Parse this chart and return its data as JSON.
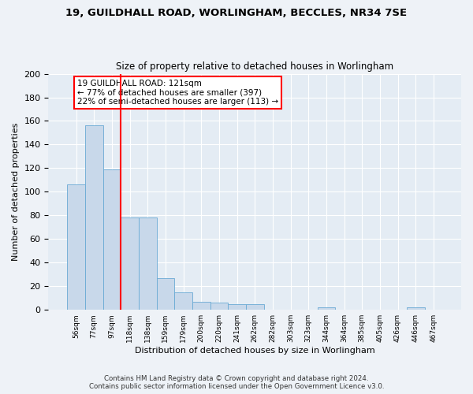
{
  "title_line1": "19, GUILDHALL ROAD, WORLINGHAM, BECCLES, NR34 7SE",
  "title_line2": "Size of property relative to detached houses in Worlingham",
  "xlabel": "Distribution of detached houses by size in Worlingham",
  "ylabel": "Number of detached properties",
  "bar_color": "#c8d8ea",
  "bar_edge_color": "#6aaad4",
  "categories": [
    "56sqm",
    "77sqm",
    "97sqm",
    "118sqm",
    "138sqm",
    "159sqm",
    "179sqm",
    "200sqm",
    "220sqm",
    "241sqm",
    "262sqm",
    "282sqm",
    "303sqm",
    "323sqm",
    "344sqm",
    "364sqm",
    "385sqm",
    "405sqm",
    "426sqm",
    "446sqm",
    "467sqm"
  ],
  "values": [
    106,
    156,
    119,
    78,
    78,
    27,
    15,
    7,
    6,
    5,
    5,
    0,
    0,
    0,
    2,
    0,
    0,
    0,
    0,
    2,
    0
  ],
  "red_line_x": 3.0,
  "annotation_text": "19 GUILDHALL ROAD: 121sqm\n← 77% of detached houses are smaller (397)\n22% of semi-detached houses are larger (113) →",
  "ylim": [
    0,
    200
  ],
  "yticks": [
    0,
    20,
    40,
    60,
    80,
    100,
    120,
    140,
    160,
    180,
    200
  ],
  "footnote": "Contains HM Land Registry data © Crown copyright and database right 2024.\nContains public sector information licensed under the Open Government Licence v3.0.",
  "background_color": "#eef2f7",
  "plot_bg_color": "#e4ecf4"
}
